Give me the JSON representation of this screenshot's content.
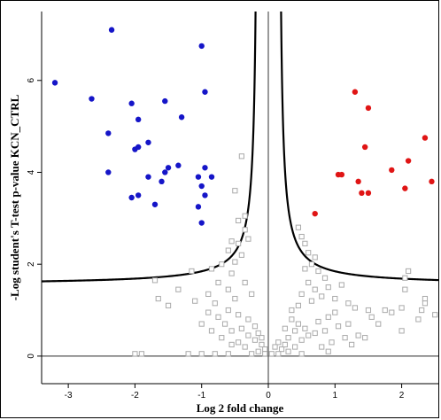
{
  "chart_data": {
    "type": "scatter",
    "title": "",
    "xlabel": "Log 2 fold change",
    "ylabel": "-Log student's T-test p-value KCN_CTRL",
    "xlim": [
      -3.4,
      2.55
    ],
    "ylim": [
      -0.6,
      7.5
    ],
    "x_ticks": [
      -3,
      -2,
      -1,
      0,
      1,
      2
    ],
    "y_ticks": [
      0,
      2,
      4,
      6
    ],
    "x_tick_labels": [
      "-3",
      "-2",
      "-1",
      "0",
      "1",
      "2"
    ],
    "y_tick_labels": [
      "0",
      "2",
      "4",
      "6"
    ],
    "reference_lines": {
      "x": 0,
      "y": 0
    },
    "threshold_curve": {
      "s0": 0.15,
      "c": 0.28,
      "asymptote_x": 0.45
    },
    "colors": {
      "down": "#1515c8",
      "up": "#e01515",
      "non_significant": "#aaaaaa",
      "curve": "#000000"
    },
    "series": [
      {
        "marker": "filled-circle",
        "color": "#1515c8",
        "points": [
          [
            -3.2,
            5.95
          ],
          [
            -2.35,
            7.1
          ],
          [
            -2.65,
            5.6
          ],
          [
            -2.05,
            5.5
          ],
          [
            -2.4,
            4.85
          ],
          [
            -1.95,
            5.15
          ],
          [
            -1.8,
            4.65
          ],
          [
            -1.55,
            5.55
          ],
          [
            -1.3,
            5.2
          ],
          [
            -2.0,
            4.5
          ],
          [
            -2.4,
            4.0
          ],
          [
            -1.95,
            4.55
          ],
          [
            -1.8,
            3.9
          ],
          [
            -1.55,
            4.0
          ],
          [
            -1.5,
            4.1
          ],
          [
            -1.35,
            4.15
          ],
          [
            -1.6,
            3.8
          ],
          [
            -1.7,
            3.3
          ],
          [
            -2.05,
            3.45
          ],
          [
            -1.95,
            3.5
          ],
          [
            -1.0,
            6.75
          ],
          [
            -0.95,
            5.75
          ],
          [
            -0.95,
            4.1
          ],
          [
            -1.05,
            3.9
          ],
          [
            -0.85,
            3.9
          ],
          [
            -1.0,
            3.7
          ],
          [
            -0.95,
            3.5
          ],
          [
            -1.05,
            3.25
          ],
          [
            -1.0,
            2.9
          ]
        ]
      },
      {
        "marker": "filled-circle",
        "color": "#e01515",
        "points": [
          [
            1.3,
            5.75
          ],
          [
            1.5,
            5.4
          ],
          [
            1.45,
            4.55
          ],
          [
            2.35,
            4.75
          ],
          [
            2.1,
            4.25
          ],
          [
            1.85,
            4.05
          ],
          [
            1.05,
            3.95
          ],
          [
            1.1,
            3.95
          ],
          [
            1.35,
            3.8
          ],
          [
            1.5,
            3.55
          ],
          [
            1.4,
            3.55
          ],
          [
            2.05,
            3.65
          ],
          [
            2.45,
            3.8
          ],
          [
            0.7,
            3.1
          ]
        ]
      },
      {
        "marker": "open-square",
        "color": "#aaaaaa",
        "points": [
          [
            -0.4,
            4.35
          ],
          [
            -0.5,
            3.6
          ],
          [
            -0.35,
            3.05
          ],
          [
            -0.45,
            2.95
          ],
          [
            -0.35,
            2.75
          ],
          [
            -0.3,
            2.55
          ],
          [
            -0.45,
            2.45
          ],
          [
            -0.55,
            2.5
          ],
          [
            -0.6,
            2.3
          ],
          [
            -0.4,
            2.2
          ],
          [
            -0.5,
            2.05
          ],
          [
            -0.7,
            2.0
          ],
          [
            -0.85,
            1.9
          ],
          [
            -0.55,
            1.8
          ],
          [
            -0.75,
            1.6
          ],
          [
            -0.6,
            1.45
          ],
          [
            -0.9,
            1.35
          ],
          [
            -0.5,
            1.25
          ],
          [
            -1.15,
            1.85
          ],
          [
            -1.35,
            1.45
          ],
          [
            -1.7,
            1.65
          ],
          [
            -1.65,
            1.25
          ],
          [
            -1.5,
            1.1
          ],
          [
            -1.1,
            1.2
          ],
          [
            -0.8,
            1.15
          ],
          [
            -0.9,
            0.95
          ],
          [
            -0.75,
            0.85
          ],
          [
            -0.65,
            0.7
          ],
          [
            -0.55,
            0.55
          ],
          [
            -0.4,
            0.6
          ],
          [
            -0.3,
            0.45
          ],
          [
            -0.2,
            0.35
          ],
          [
            -0.1,
            0.25
          ],
          [
            -0.05,
            0.15
          ],
          [
            -0.15,
            0.1
          ],
          [
            -0.25,
            0.05
          ],
          [
            -0.6,
            0.05
          ],
          [
            -0.8,
            0.05
          ],
          [
            -1.0,
            0.05
          ],
          [
            -1.2,
            0.05
          ],
          [
            -1.9,
            0.05
          ],
          [
            -2.0,
            0.05
          ],
          [
            -0.7,
            0.4
          ],
          [
            -0.85,
            0.55
          ],
          [
            -1.0,
            0.7
          ],
          [
            -0.45,
            0.3
          ],
          [
            -0.35,
            0.2
          ],
          [
            -0.55,
            0.25
          ],
          [
            -0.45,
            0.9
          ],
          [
            -0.3,
            0.8
          ],
          [
            -0.2,
            0.65
          ],
          [
            -0.6,
            1.0
          ],
          [
            -0.35,
            1.6
          ],
          [
            -0.25,
            1.35
          ],
          [
            -0.15,
            0.5
          ],
          [
            -0.1,
            0.4
          ],
          [
            0.5,
            2.6
          ],
          [
            0.45,
            2.8
          ],
          [
            0.55,
            2.45
          ],
          [
            0.6,
            2.25
          ],
          [
            0.7,
            2.15
          ],
          [
            0.65,
            2.0
          ],
          [
            0.55,
            1.9
          ],
          [
            0.75,
            1.85
          ],
          [
            0.85,
            1.7
          ],
          [
            0.6,
            1.6
          ],
          [
            0.9,
            1.5
          ],
          [
            0.7,
            1.45
          ],
          [
            0.8,
            1.3
          ],
          [
            1.0,
            1.25
          ],
          [
            0.5,
            1.35
          ],
          [
            0.65,
            1.2
          ],
          [
            0.45,
            1.1
          ],
          [
            0.35,
            1.0
          ],
          [
            1.1,
            1.55
          ],
          [
            1.2,
            1.15
          ],
          [
            1.3,
            1.05
          ],
          [
            1.0,
            0.95
          ],
          [
            0.9,
            0.85
          ],
          [
            0.75,
            0.75
          ],
          [
            1.5,
            1.0
          ],
          [
            1.55,
            0.85
          ],
          [
            1.75,
            1.0
          ],
          [
            1.65,
            0.7
          ],
          [
            1.85,
            0.95
          ],
          [
            2.0,
            1.05
          ],
          [
            2.05,
            1.7
          ],
          [
            2.1,
            1.85
          ],
          [
            2.05,
            1.45
          ],
          [
            2.35,
            1.25
          ],
          [
            2.35,
            1.15
          ],
          [
            2.3,
            1.0
          ],
          [
            2.25,
            0.8
          ],
          [
            2.5,
            0.9
          ],
          [
            2.0,
            0.55
          ],
          [
            1.45,
            0.4
          ],
          [
            1.35,
            0.45
          ],
          [
            0.3,
            0.1
          ],
          [
            0.4,
            0.2
          ],
          [
            0.2,
            0.15
          ],
          [
            0.5,
            0.35
          ],
          [
            0.6,
            0.45
          ],
          [
            0.7,
            0.5
          ],
          [
            0.55,
            0.6
          ],
          [
            0.4,
            0.55
          ],
          [
            0.3,
            0.4
          ],
          [
            0.15,
            0.3
          ],
          [
            0.1,
            0.2
          ],
          [
            0.25,
            0.25
          ],
          [
            0.85,
            0.55
          ],
          [
            1.05,
            0.65
          ],
          [
            1.2,
            0.7
          ],
          [
            0.45,
            0.7
          ],
          [
            0.35,
            0.8
          ],
          [
            0.25,
            0.6
          ],
          [
            0.95,
            0.3
          ],
          [
            1.15,
            0.4
          ],
          [
            1.25,
            0.25
          ],
          [
            0.8,
            0.2
          ],
          [
            0.05,
            0.05
          ],
          [
            -0.05,
            0.05
          ],
          [
            0.15,
            0.05
          ],
          [
            0.5,
            0.05
          ],
          [
            0.9,
            0.1
          ]
        ]
      }
    ],
    "grid": false,
    "legend": "none"
  }
}
